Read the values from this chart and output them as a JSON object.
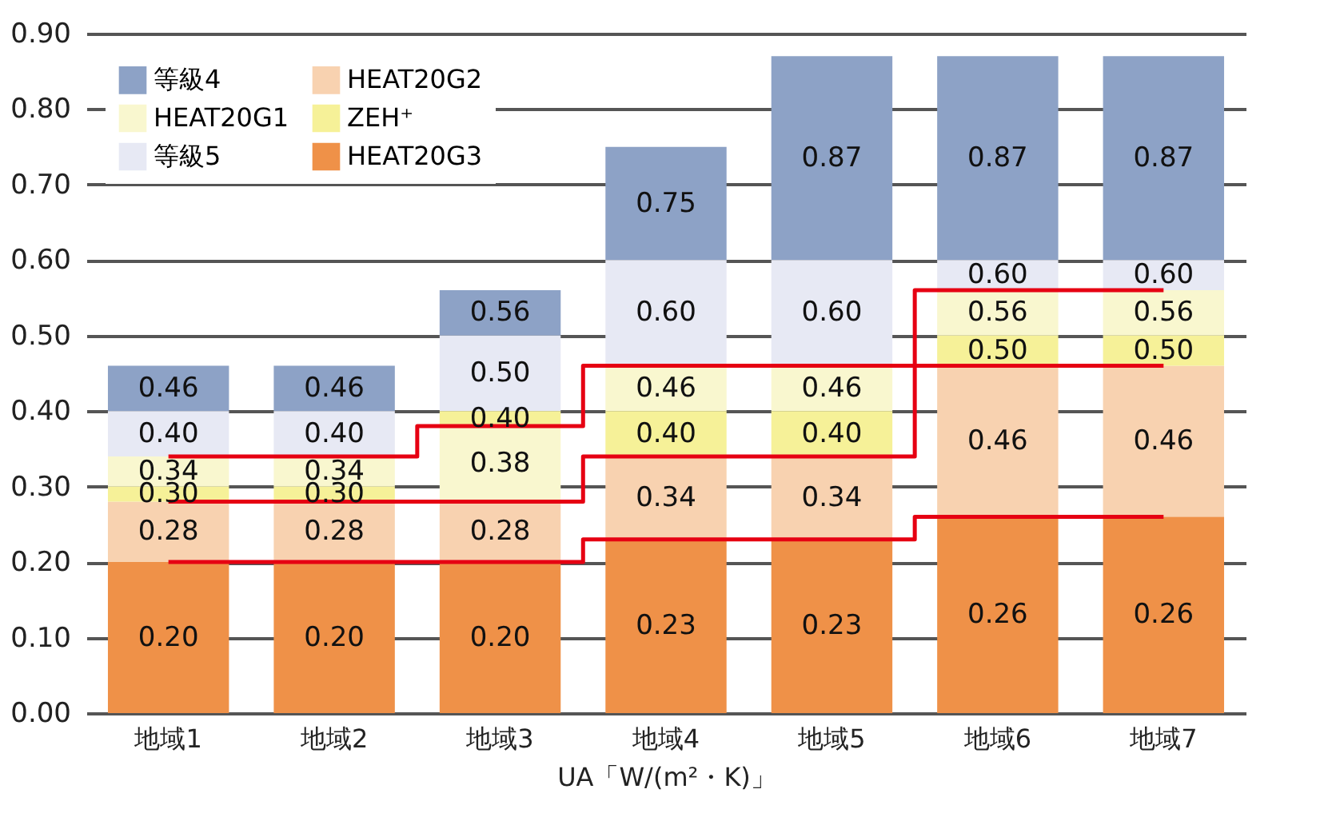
{
  "chart_data": {
    "type": "bar",
    "xlabel": "UA「W/(m²・K)」",
    "categories": [
      "地域1",
      "地域2",
      "地域3",
      "地域4",
      "地域5",
      "地域6",
      "地域7"
    ],
    "series": [
      {
        "name": "等級4",
        "color": "#8da2c6",
        "base": [
          0.4,
          0.4,
          0.5,
          0.6,
          0.6,
          0.6,
          0.6
        ],
        "values": [
          0.06,
          0.06,
          0.06,
          0.15,
          0.27,
          0.27,
          0.27
        ],
        "value_labels": [
          "0.46",
          "0.46",
          "0.56",
          "0.75",
          "0.87",
          "0.87",
          "0.87"
        ]
      },
      {
        "name": "HEAT20G1",
        "color": "#f9f7cf",
        "base": [
          0.3,
          0.3,
          0.28,
          0.4,
          0.4,
          0.5,
          0.5
        ],
        "values": [
          0.04,
          0.04,
          0.1,
          0.06,
          0.06,
          0.06,
          0.06
        ],
        "value_labels": [
          "0.34",
          "0.34",
          "0.38",
          "0.46",
          "0.46",
          "0.56",
          "0.56"
        ]
      },
      {
        "name": "等級5",
        "color": "#e7e9f4",
        "base": [
          0.34,
          0.34,
          0.4,
          0.46,
          0.46,
          0.56,
          0.56
        ],
        "values": [
          0.06,
          0.06,
          0.1,
          0.14,
          0.14,
          0.04,
          0.04
        ],
        "value_labels": [
          "0.40",
          "0.40",
          "0.50",
          "0.60",
          "0.60",
          "0.60",
          "0.60"
        ]
      },
      {
        "name": "HEAT20G2",
        "color": "#f8d2b0",
        "base": [
          0.2,
          0.2,
          0.2,
          0.23,
          0.23,
          0.26,
          0.26
        ],
        "values": [
          0.08,
          0.08,
          0.08,
          0.11,
          0.11,
          0.2,
          0.2
        ],
        "value_labels": [
          "0.28",
          "0.28",
          "0.28",
          "0.34",
          "0.34",
          "0.46",
          "0.46"
        ]
      },
      {
        "name": "ZEH⁺",
        "color": "#f6f198",
        "base": [
          0.28,
          0.28,
          0.38,
          0.34,
          0.34,
          0.46,
          0.46
        ],
        "values": [
          0.02,
          0.02,
          0.02,
          0.06,
          0.06,
          0.04,
          0.04
        ],
        "value_labels": [
          "0.30",
          "0.30",
          "0.40",
          "0.40",
          "0.40",
          "0.50",
          "0.50"
        ]
      },
      {
        "name": "HEAT20G3",
        "color": "#ef9148",
        "base": [
          0,
          0,
          0,
          0,
          0,
          0,
          0
        ],
        "values": [
          0.2,
          0.2,
          0.2,
          0.23,
          0.23,
          0.26,
          0.26
        ],
        "value_labels": [
          "0.20",
          "0.20",
          "0.20",
          "0.23",
          "0.23",
          "0.26",
          "0.26"
        ]
      },
      {
        "type": "step",
        "color": "#e60012",
        "values": [
          0.34,
          0.34,
          0.38,
          0.46,
          0.46,
          0.56,
          0.56
        ]
      },
      {
        "type": "step",
        "color": "#e60012",
        "values": [
          0.28,
          0.28,
          0.28,
          0.34,
          0.34,
          0.46,
          0.46
        ]
      },
      {
        "type": "step",
        "color": "#e60012",
        "values": [
          0.2,
          0.2,
          0.2,
          0.23,
          0.23,
          0.26,
          0.26
        ]
      }
    ],
    "ylim": [
      0,
      0.9
    ],
    "yticks": [
      {
        "value": 0,
        "label": "0.00"
      },
      {
        "value": 0.1,
        "label": "0.10"
      },
      {
        "value": 0.2,
        "label": "0.20"
      },
      {
        "value": 0.3,
        "label": "0.30"
      },
      {
        "value": 0.4,
        "label": "0.40"
      },
      {
        "value": 0.5,
        "label": "0.50"
      },
      {
        "value": 0.6,
        "label": "0.60"
      },
      {
        "value": 0.7,
        "label": "0.70"
      },
      {
        "value": 0.8,
        "label": "0.80"
      },
      {
        "value": 0.9,
        "label": "0.90"
      }
    ],
    "grid": "y",
    "legend": "top left"
  }
}
